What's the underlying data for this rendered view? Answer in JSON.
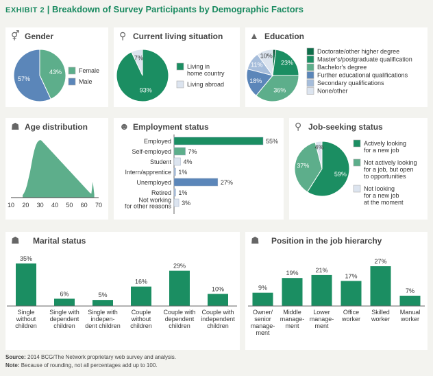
{
  "header": {
    "exhibit": "EXHIBIT 2",
    "separator": "|",
    "title": "Breakdown of Survey Participants by Demographic Factors"
  },
  "colors": {
    "teal_dark": "#1b8e62",
    "teal_mid": "#5dae8b",
    "blue": "#5b86b9",
    "blue_light": "#a6bddb",
    "pale": "#dce4ef",
    "grey": "#e8e8e8"
  },
  "panels": {
    "gender": {
      "title": "Gender",
      "icon": "gender-icon"
    },
    "living": {
      "title": "Current living situation",
      "icon": "globe-people-icon"
    },
    "education": {
      "title": "Education",
      "icon": "graduation-cap-icon"
    },
    "age": {
      "title": "Age distribution",
      "icon": "people-group-icon"
    },
    "employment": {
      "title": "Employment status",
      "icon": "worker-icon"
    },
    "jobseeking": {
      "title": "Job-seeking status",
      "icon": "magnifier-icon"
    },
    "marital": {
      "title": "Marital status",
      "icon": "family-icon"
    },
    "hierarchy": {
      "title": "Position in the job hierarchy",
      "icon": "hierarchy-people-icon"
    }
  },
  "chart_data": [
    {
      "id": "gender",
      "type": "pie",
      "labels": [
        "Female",
        "Male"
      ],
      "values": [
        43,
        57
      ],
      "value_labels": [
        "43%",
        "57%"
      ],
      "colors": [
        "#5dae8b",
        "#5b86b9"
      ],
      "legend": "right"
    },
    {
      "id": "living",
      "type": "pie",
      "labels": [
        "Living in home country",
        "Living abroad"
      ],
      "legend_lines": [
        [
          "Living in",
          "home country"
        ],
        [
          "Living abroad"
        ]
      ],
      "values": [
        93,
        7
      ],
      "value_labels": [
        "93%",
        "7%"
      ],
      "colors": [
        "#1b8e62",
        "#dce4ef"
      ],
      "legend": "right"
    },
    {
      "id": "education",
      "type": "pie",
      "labels": [
        "Doctorate/other higher degree",
        "Master's/postgraduate qualification",
        "Bachelor's degree",
        "Further educational qualifications",
        "Secondary qualifications",
        "None/other"
      ],
      "values": [
        2,
        23,
        36,
        18,
        11,
        10
      ],
      "value_labels": [
        "2%",
        "23%",
        "36%",
        "18%",
        "11%",
        "10%"
      ],
      "colors": [
        "#0e6e4a",
        "#1b8e62",
        "#5dae8b",
        "#5b86b9",
        "#a6bddb",
        "#dce4ef"
      ],
      "legend": "right"
    },
    {
      "id": "age",
      "type": "area",
      "xlabel": "",
      "ylabel": "",
      "xlim": [
        10,
        70
      ],
      "xticks": [
        "10",
        "20",
        "30",
        "40",
        "50",
        "60",
        "70"
      ],
      "x": [
        18,
        19,
        20,
        21,
        22,
        23,
        24,
        25,
        26,
        27,
        28,
        29,
        30,
        31,
        32,
        33,
        34,
        35,
        36,
        37,
        38,
        39,
        40,
        41,
        42,
        43,
        44,
        45,
        46,
        47,
        48,
        49,
        50,
        51,
        52,
        53,
        54,
        55,
        56,
        57,
        58,
        59,
        60,
        61,
        62,
        63,
        64,
        65,
        66,
        67
      ],
      "y": [
        3,
        6,
        10,
        16,
        24,
        32,
        42,
        52,
        60,
        66,
        70,
        72,
        73,
        72,
        70,
        68,
        66,
        64,
        62,
        60,
        58,
        56,
        54,
        52,
        50,
        48,
        46,
        44,
        42,
        40,
        38,
        36,
        34,
        32,
        30,
        28,
        26,
        24,
        22,
        20,
        18,
        16,
        14,
        12,
        10,
        8,
        6,
        5,
        20,
        4
      ],
      "color": "#5dae8b"
    },
    {
      "id": "employment",
      "type": "bar",
      "orientation": "horizontal",
      "categories": [
        "Employed",
        "Self-employed",
        "Student",
        "Intern/apprentice",
        "Unemployed",
        "Retired",
        "Not working for other reasons"
      ],
      "category_lines": [
        [
          "Employed"
        ],
        [
          "Self-employed"
        ],
        [
          "Student"
        ],
        [
          "Intern/apprentice"
        ],
        [
          "Unemployed"
        ],
        [
          "Retired"
        ],
        [
          "Not working",
          "for other reasons"
        ]
      ],
      "values": [
        55,
        7,
        4,
        1,
        27,
        1,
        3
      ],
      "value_labels": [
        "55%",
        "7%",
        "4%",
        "1%",
        "27%",
        "1%",
        "3%"
      ],
      "colors": [
        "#1b8e62",
        "#5dae8b",
        "#dce4ef",
        "#a6bddb",
        "#5b86b9",
        "#a6bddb",
        "#dce4ef"
      ]
    },
    {
      "id": "jobseeking",
      "type": "pie",
      "labels": [
        "Actively looking for a new job",
        "Not actively looking for a job, but open to opportunities",
        "Not looking for a new job at the moment"
      ],
      "legend_lines": [
        [
          "Actively looking",
          "for a new job"
        ],
        [
          "Not actively looking",
          "for a job, but open",
          "to opportunities"
        ],
        [
          "Not looking",
          "for a new job",
          "at the moment"
        ]
      ],
      "values": [
        59,
        37,
        4
      ],
      "value_labels": [
        "59%",
        "37%",
        "4%"
      ],
      "colors": [
        "#1b8e62",
        "#5dae8b",
        "#dce4ef"
      ],
      "legend": "right"
    },
    {
      "id": "marital",
      "type": "bar",
      "categories": [
        "Single without children",
        "Single with dependent children",
        "Single with independent children",
        "Couple without children",
        "Couple with dependent children",
        "Couple with independent children"
      ],
      "category_lines": [
        [
          "Single",
          "without",
          "children"
        ],
        [
          "Single with",
          "dependent",
          "children"
        ],
        [
          "Single with",
          "indepen-",
          "dent children"
        ],
        [
          "Couple",
          "without",
          "children"
        ],
        [
          "Couple with",
          "dependent",
          "children"
        ],
        [
          "Couple with",
          "independent",
          "children"
        ]
      ],
      "values": [
        35,
        6,
        5,
        16,
        29,
        10
      ],
      "value_labels": [
        "35%",
        "6%",
        "5%",
        "16%",
        "29%",
        "10%"
      ],
      "color": "#1b8e62"
    },
    {
      "id": "hierarchy",
      "type": "bar",
      "categories": [
        "Owner/senior management",
        "Middle management",
        "Lower management",
        "Office worker",
        "Skilled worker",
        "Manual worker"
      ],
      "category_lines": [
        [
          "Owner/",
          "senior",
          "manage-",
          "ment"
        ],
        [
          "Middle",
          "manage-",
          "ment"
        ],
        [
          "Lower",
          "manage-",
          "ment"
        ],
        [
          "Office",
          "worker"
        ],
        [
          "Skilled",
          "worker"
        ],
        [
          "Manual",
          "worker"
        ]
      ],
      "values": [
        9,
        19,
        21,
        17,
        27,
        7
      ],
      "value_labels": [
        "9%",
        "19%",
        "21%",
        "17%",
        "27%",
        "7%"
      ],
      "color": "#1b8e62"
    }
  ],
  "footer": {
    "source_label": "Source:",
    "source_text": "2014 BCG/The Network proprietary web survey and analysis.",
    "note_label": "Note:",
    "note_text": "Because of rounding, not all percentages add up to 100."
  }
}
